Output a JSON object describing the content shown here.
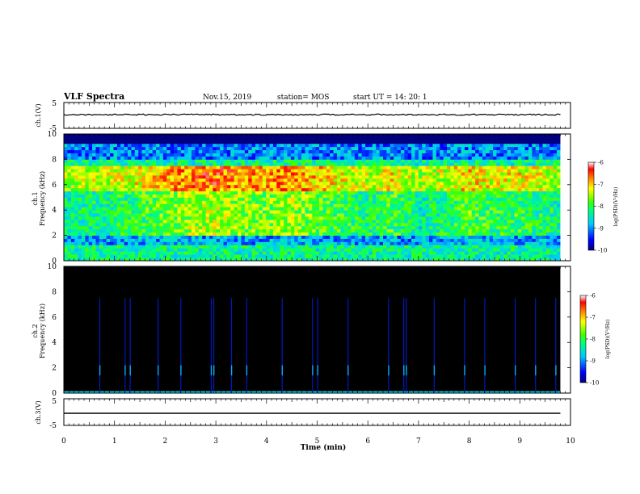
{
  "header": {
    "title": "VLF Spectra",
    "date": "Nov.15, 2019",
    "station": "station= MOS",
    "start": "start  UT =   14: 20: 1"
  },
  "chart_data": [
    {
      "type": "line",
      "panel": "ch1-waveform",
      "ylabel": "ch.1(V)",
      "yticks": [
        "5",
        "-5"
      ],
      "ylim": [
        -5,
        5
      ],
      "description_values": {
        "baseline": 0
      },
      "x": [
        0,
        9.8
      ],
      "y": [
        0,
        0
      ]
    },
    {
      "type": "heatmap",
      "panel": "ch1-spectrogram",
      "ylabel_line1": "ch.1",
      "ylabel_line2": "Frequency  (kHz)",
      "yticks": [
        "0",
        "2",
        "4",
        "6",
        "8",
        "10"
      ],
      "ylim": [
        0,
        10
      ],
      "xlim": [
        0,
        9.8
      ],
      "colorbar": {
        "ticks": [
          "-6",
          "-7",
          "-8",
          "-9",
          "-10"
        ],
        "range": [
          -10,
          -6
        ],
        "label": "log(PSD)(V²/Hz)"
      },
      "bands": [
        {
          "f_low": 9.2,
          "f_high": 10.0,
          "level": -10.0
        },
        {
          "f_low": 8.0,
          "f_high": 9.2,
          "level": -9.0
        },
        {
          "f_low": 7.6,
          "f_high": 8.0,
          "level": -8.3
        },
        {
          "f_low": 5.5,
          "f_high": 7.6,
          "level": -7.2
        },
        {
          "f_low": 2.0,
          "f_high": 5.5,
          "level": -8.0
        },
        {
          "f_low": 1.2,
          "f_high": 2.0,
          "level": -8.9
        },
        {
          "f_low": 0.0,
          "f_high": 1.2,
          "level": -8.3
        }
      ],
      "activity_profile": {
        "t": [
          0,
          0.5,
          1,
          1.5,
          2,
          2.5,
          3,
          3.5,
          4,
          4.5,
          5,
          5.5,
          6,
          6.5,
          7,
          7.5,
          8,
          8.5,
          9,
          9.5,
          9.8
        ],
        "level": [
          -8.0,
          -7.9,
          -7.8,
          -7.6,
          -7.3,
          -7.1,
          -7.0,
          -7.2,
          -7.3,
          -7.1,
          -7.4,
          -7.6,
          -7.9,
          -7.5,
          -8.0,
          -7.8,
          -7.4,
          -7.7,
          -7.6,
          -7.8,
          -8.0
        ]
      }
    },
    {
      "type": "heatmap",
      "panel": "ch2-spectrogram",
      "ylabel_line1": "ch.2",
      "ylabel_line2": "Frequency  (kHz)",
      "yticks": [
        "0",
        "2",
        "4",
        "6",
        "8",
        "10"
      ],
      "ylim": [
        0,
        10
      ],
      "xlim": [
        0,
        9.8
      ],
      "colorbar": {
        "ticks": [
          "-6",
          "-7",
          "-8",
          "-9",
          "-10"
        ],
        "range": [
          -10,
          -6
        ],
        "label": "log(PSD)(V²/Hz)"
      },
      "background_level": -10.0,
      "sferics_t": [
        0.7,
        1.2,
        1.3,
        1.85,
        2.3,
        2.9,
        2.95,
        3.3,
        3.6,
        4.3,
        4.9,
        5.0,
        5.6,
        6.4,
        6.7,
        6.75,
        7.3,
        7.9,
        8.3,
        8.9,
        9.3,
        9.7
      ]
    },
    {
      "type": "line",
      "panel": "ch3-waveform",
      "ylabel": "ch.3(V)",
      "yticks": [
        "5",
        "-5"
      ],
      "ylim": [
        -5,
        5
      ],
      "x": [
        0,
        9.8
      ],
      "y": [
        0,
        0
      ]
    }
  ],
  "xaxis": {
    "label": "Time  (min)",
    "ticks": [
      "0",
      "1",
      "2",
      "3",
      "4",
      "5",
      "6",
      "7",
      "8",
      "9",
      "10"
    ],
    "xlim": [
      0,
      10
    ]
  },
  "colors": {
    "background": "#000000",
    "trace": "#000000"
  }
}
